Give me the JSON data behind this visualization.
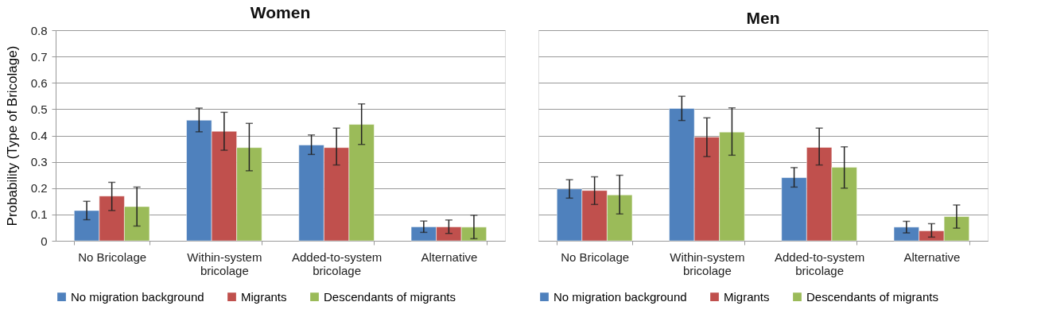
{
  "chart_data": [
    {
      "type": "bar",
      "title": "Women",
      "ylabel": "Probability  (Type of Bricolage)",
      "categories": [
        "No Bricolage",
        "Within-system bricolage",
        "Added-to-system bricolage",
        "Alternative"
      ],
      "ylim": [
        0,
        0.8
      ],
      "yticks": [
        0,
        0.1,
        0.2,
        0.3,
        0.4,
        0.5,
        0.6,
        0.7,
        0.8
      ],
      "grid": "y",
      "legend": "bottom",
      "series": [
        {
          "name": "No migration background",
          "color": "#4f81bd",
          "values": [
            0.115,
            0.458,
            0.364,
            0.053
          ],
          "errors": [
            [
              0.08,
              0.15
            ],
            [
              0.414,
              0.504
            ],
            [
              0.328,
              0.402
            ],
            [
              0.032,
              0.075
            ]
          ]
        },
        {
          "name": "Migrants",
          "color": "#c0504d",
          "values": [
            0.17,
            0.416,
            0.354,
            0.053
          ],
          "errors": [
            [
              0.115,
              0.222
            ],
            [
              0.344,
              0.488
            ],
            [
              0.288,
              0.428
            ],
            [
              0.028,
              0.079
            ]
          ]
        },
        {
          "name": "Descendants of migrants",
          "color": "#9bbb59",
          "values": [
            0.13,
            0.354,
            0.442,
            0.052
          ],
          "errors": [
            [
              0.056,
              0.204
            ],
            [
              0.266,
              0.446
            ],
            [
              0.366,
              0.52
            ],
            [
              0.008,
              0.097
            ]
          ]
        }
      ]
    },
    {
      "type": "bar",
      "title": "Men",
      "categories": [
        "No Bricolage",
        "Within-system bricolage",
        "Added-to-system bricolage",
        "Alternative"
      ],
      "ylim": [
        0,
        0.8
      ],
      "yticks": [
        0,
        0.1,
        0.2,
        0.3,
        0.4,
        0.5,
        0.6,
        0.7,
        0.8
      ],
      "grid": "y",
      "legend": "bottom",
      "tick_labels": "x",
      "series": [
        {
          "name": "No migration background",
          "color": "#4f81bd",
          "values": [
            0.197,
            0.503,
            0.24,
            0.052
          ],
          "errors": [
            [
              0.162,
              0.232
            ],
            [
              0.457,
              0.549
            ],
            [
              0.204,
              0.278
            ],
            [
              0.03,
              0.074
            ]
          ]
        },
        {
          "name": "Migrants",
          "color": "#c0504d",
          "values": [
            0.191,
            0.394,
            0.355,
            0.038
          ],
          "errors": [
            [
              0.138,
              0.243
            ],
            [
              0.32,
              0.467
            ],
            [
              0.288,
              0.428
            ],
            [
              0.014,
              0.065
            ]
          ]
        },
        {
          "name": "Descendants of migrants",
          "color": "#9bbb59",
          "values": [
            0.174,
            0.413,
            0.279,
            0.092
          ],
          "errors": [
            [
              0.102,
              0.249
            ],
            [
              0.325,
              0.505
            ],
            [
              0.2,
              0.357
            ],
            [
              0.048,
              0.136
            ]
          ]
        }
      ]
    }
  ]
}
